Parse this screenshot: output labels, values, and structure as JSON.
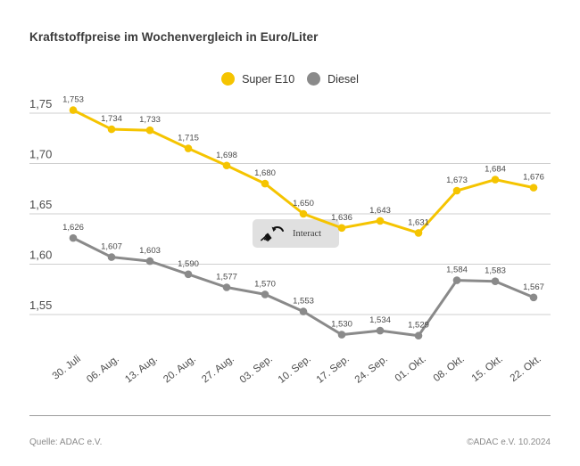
{
  "title": "Kraftstoffpreise im Wochenvergleich in Euro/Liter",
  "legend": {
    "items": [
      {
        "label": "Super E10",
        "color": "#F5C400"
      },
      {
        "label": "Diesel",
        "color": "#8A8A8A"
      }
    ]
  },
  "interact": {
    "label": "Interact"
  },
  "footer": {
    "source": "Quelle: ADAC e.V.",
    "copyright": "©ADAC e.V. 10.2024"
  },
  "chart_data": {
    "type": "line",
    "title": "Kraftstoffpreise im Wochenvergleich in Euro/Liter",
    "xlabel": "",
    "ylabel": "Euro/Liter",
    "categories": [
      "30. Juli",
      "06. Aug.",
      "13. Aug.",
      "20. Aug.",
      "27. Aug.",
      "03. Sep.",
      "10. Sep.",
      "17. Sep.",
      "24. Sep.",
      "01. Okt.",
      "08. Okt.",
      "15. Okt.",
      "22. Okt."
    ],
    "series": [
      {
        "name": "Super E10",
        "color": "#F5C400",
        "values": [
          1.753,
          1.734,
          1.733,
          1.715,
          1.698,
          1.68,
          1.65,
          1.636,
          1.643,
          1.631,
          1.673,
          1.684,
          1.676
        ],
        "labels": [
          "1,753",
          "1,734",
          "1,733",
          "1,715",
          "1,698",
          "1,680",
          "1,650",
          "1,636",
          "1,643",
          "1,631",
          "1,673",
          "1,684",
          "1,676"
        ]
      },
      {
        "name": "Diesel",
        "color": "#8A8A8A",
        "values": [
          1.626,
          1.607,
          1.603,
          1.59,
          1.577,
          1.57,
          1.553,
          1.53,
          1.534,
          1.529,
          1.584,
          1.583,
          1.567
        ],
        "labels": [
          "1,626",
          "1,607",
          "1,603",
          "1,590",
          "1,577",
          "1,570",
          "1,553",
          "1,530",
          "1,534",
          "1,529",
          "1,584",
          "1,583",
          "1,567"
        ]
      }
    ],
    "yticks": [
      {
        "label": "1,75",
        "value": 1.75
      },
      {
        "label": "1,70",
        "value": 1.7
      },
      {
        "label": "1,65",
        "value": 1.65
      },
      {
        "label": "1,60",
        "value": 1.6
      },
      {
        "label": "1,55",
        "value": 1.55
      }
    ],
    "ylim": [
      1.52,
      1.77
    ],
    "grid": true,
    "legend_position": "top-center",
    "grid_color": "#CFCFCF",
    "label_color": "#4a4a4a",
    "tick_color": "#4d4d4d"
  }
}
